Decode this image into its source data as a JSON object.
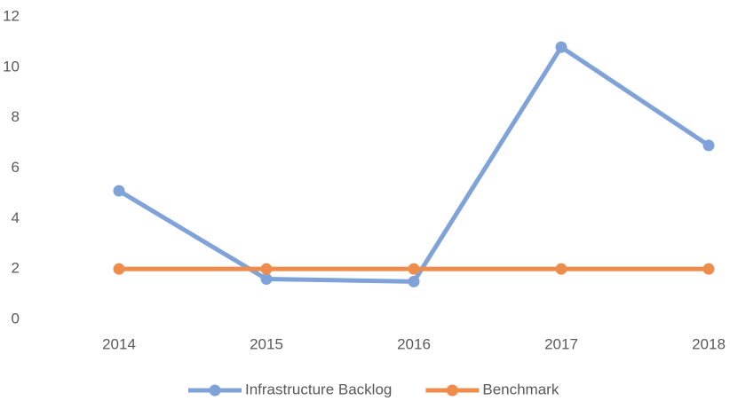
{
  "chart_data": {
    "type": "line",
    "categories": [
      "2014",
      "2015",
      "2016",
      "2017",
      "2018"
    ],
    "series": [
      {
        "name": "Infrastructure Backlog",
        "color": "#7fa3d9",
        "values": [
          5.1,
          1.6,
          1.5,
          10.8,
          6.9
        ]
      },
      {
        "name": "Benchmark",
        "color": "#ee8c4c",
        "values": [
          2,
          2,
          2,
          2,
          2
        ]
      }
    ],
    "ylim": [
      0,
      12
    ],
    "yticks": [
      0,
      2,
      4,
      6,
      8,
      10,
      12
    ],
    "grid": false,
    "legend": "bottom"
  }
}
